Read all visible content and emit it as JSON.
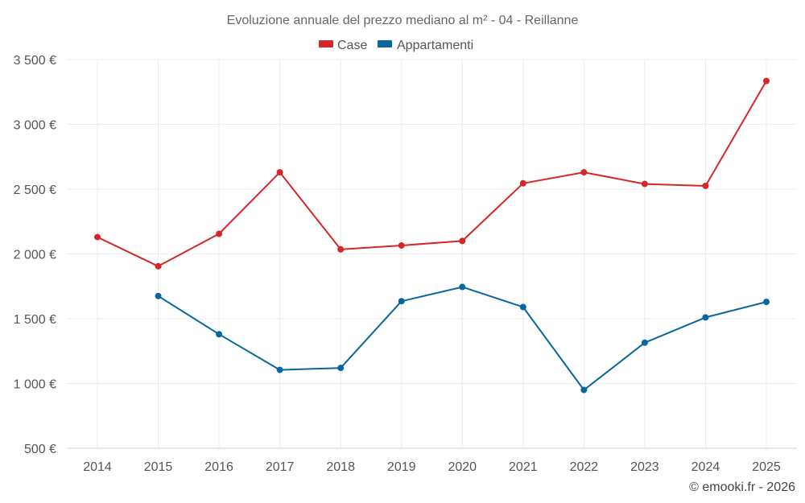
{
  "chart_data": {
    "type": "line",
    "title": "Evoluzione annuale del prezzo mediano al m² - 04 - Reillanne",
    "categories": [
      "2014",
      "2015",
      "2016",
      "2017",
      "2018",
      "2019",
      "2020",
      "2021",
      "2022",
      "2023",
      "2024",
      "2025"
    ],
    "ylim": [
      500,
      3500
    ],
    "yticks": [
      500,
      1000,
      1500,
      2000,
      2500,
      3000,
      3500
    ],
    "ytick_labels": [
      "500 €",
      "1 000 €",
      "1 500 €",
      "2 000 €",
      "2 500 €",
      "3 000 €",
      "3 500 €"
    ],
    "series": [
      {
        "name": "Case",
        "color": "#d62728",
        "values": [
          2130,
          1905,
          2155,
          2630,
          2035,
          2065,
          2100,
          2545,
          2630,
          2540,
          2525,
          3335
        ]
      },
      {
        "name": "Appartamenti",
        "color": "#08679c",
        "values": [
          null,
          1675,
          1380,
          1105,
          1120,
          1635,
          1745,
          1590,
          950,
          1315,
          1510,
          1630
        ]
      }
    ],
    "grid": true,
    "legend": "top-center",
    "credit": "© emooki.fr - 2026"
  }
}
